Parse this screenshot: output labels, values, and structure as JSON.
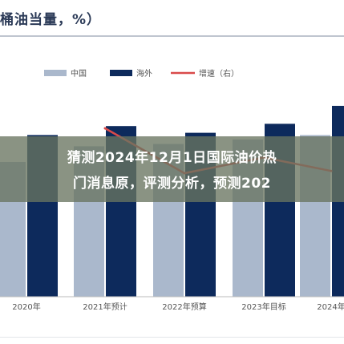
{
  "title": "万桶油当量，%）",
  "overlay": {
    "line1": "猜测2024年12月1日国际油价热",
    "line2": "门消息原，评测分析，预测202"
  },
  "colors": {
    "domestic": "#aab8cc",
    "overseas": "#0d2a5c",
    "growth": "#d94a4a"
  },
  "chart_data": {
    "type": "bar",
    "categories": [
      "2020年",
      "2021年预计",
      "2022年预算",
      "2023年目标",
      "2024年"
    ],
    "series": [
      {
        "name": "中国",
        "values": [
          60,
          67,
          68,
          70,
          72
        ],
        "color": "#aab8cc"
      },
      {
        "name": "海外",
        "values": [
          72,
          76,
          73,
          77,
          85
        ],
        "color": "#0d2a5c"
      }
    ],
    "line_series": {
      "name": "增速（右）",
      "values": [
        null,
        7.5,
        5.5,
        6.2,
        5.6
      ],
      "color": "#d94a4a"
    },
    "ylim": [
      0,
      100
    ],
    "y2lim": [
      0,
      10
    ],
    "legend": "top"
  }
}
